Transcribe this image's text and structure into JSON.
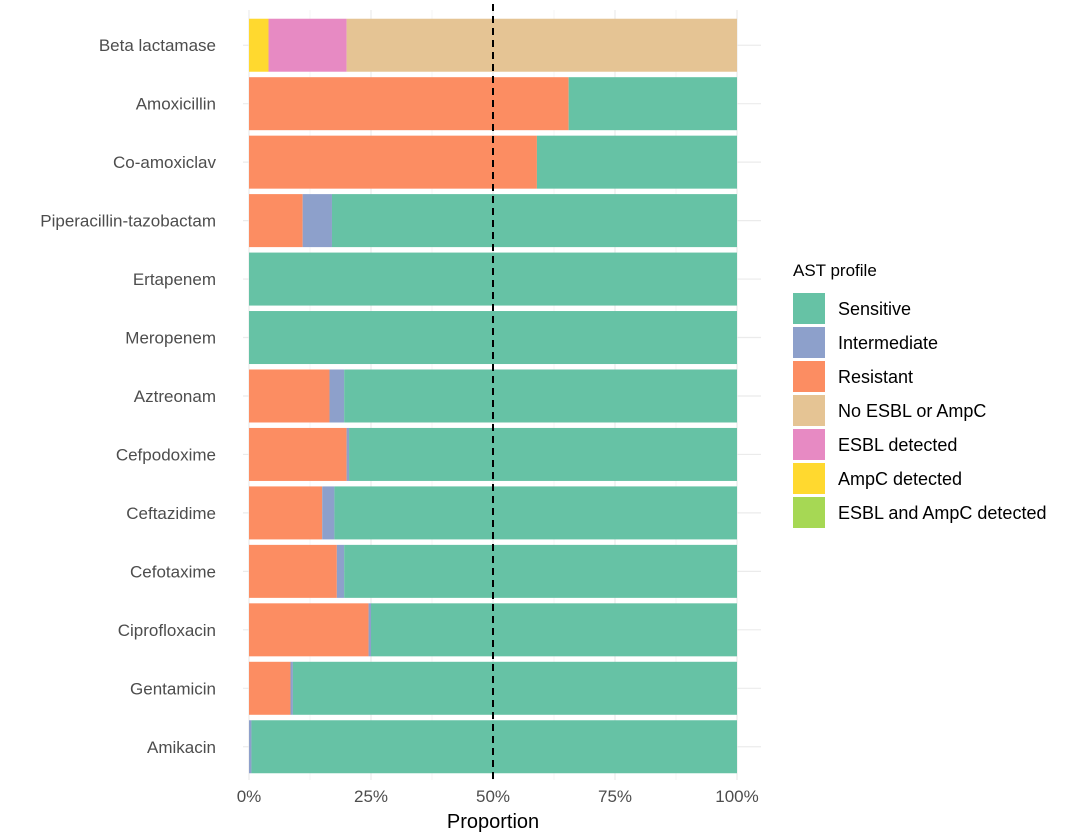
{
  "chart_data": {
    "type": "bar",
    "orientation": "horizontal",
    "stacked": true,
    "title": "",
    "xlabel": "Proportion",
    "ylabel": "",
    "xlim": [
      0,
      1
    ],
    "x_ticks": [
      "0%",
      "25%",
      "50%",
      "75%",
      "100%"
    ],
    "reference_line": {
      "value": 0.5,
      "style": "dashed",
      "color": "#000000"
    },
    "grid": true,
    "legend_position": "right",
    "legend_title": "AST profile",
    "categories": [
      "Beta lactamase",
      "Amoxicillin",
      "Co-amoxiclav",
      "Piperacillin-tazobactam",
      "Ertapenem",
      "Meropenem",
      "Aztreonam",
      "Cefpodoxime",
      "Ceftazidime",
      "Cefotaxime",
      "Ciprofloxacin",
      "Gentamicin",
      "Amikacin"
    ],
    "series": [
      {
        "name": "Sensitive",
        "color": "#66c2a5",
        "values": [
          0,
          0.345,
          0.41,
          0.83,
          1.0,
          1.0,
          0.805,
          0.795,
          0.825,
          0.805,
          0.75,
          0.91,
          0.995
        ]
      },
      {
        "name": "Intermediate",
        "color": "#8da0cb",
        "values": [
          0,
          0,
          0,
          0.06,
          0,
          0,
          0.03,
          0.005,
          0.025,
          0.015,
          0.005,
          0.005,
          0.005
        ]
      },
      {
        "name": "Resistant",
        "color": "#fc8d62",
        "values": [
          0,
          0.655,
          0.59,
          0.11,
          0,
          0,
          0.165,
          0.2,
          0.15,
          0.18,
          0.245,
          0.085,
          0
        ]
      },
      {
        "name": "No ESBL or AmpC",
        "color": "#e5c494",
        "values": [
          0.8,
          0,
          0,
          0,
          0,
          0,
          0,
          0,
          0,
          0,
          0,
          0,
          0
        ]
      },
      {
        "name": "ESBL detected",
        "color": "#e78ac3",
        "values": [
          0.16,
          0,
          0,
          0,
          0,
          0,
          0,
          0,
          0,
          0,
          0,
          0,
          0
        ]
      },
      {
        "name": "AmpC detected",
        "color": "#ffd92f",
        "values": [
          0.04,
          0,
          0,
          0,
          0,
          0,
          0,
          0,
          0,
          0,
          0,
          0,
          0
        ]
      },
      {
        "name": "ESBL and AmpC detected",
        "color": "#a6d854",
        "values": [
          0,
          0,
          0,
          0,
          0,
          0,
          0,
          0,
          0,
          0,
          0,
          0,
          0
        ]
      }
    ],
    "stack_order_left_to_right": [
      "ESBL and AmpC detected",
      "AmpC detected",
      "ESBL detected",
      "No ESBL or AmpC",
      "Resistant",
      "Intermediate",
      "Sensitive"
    ]
  }
}
